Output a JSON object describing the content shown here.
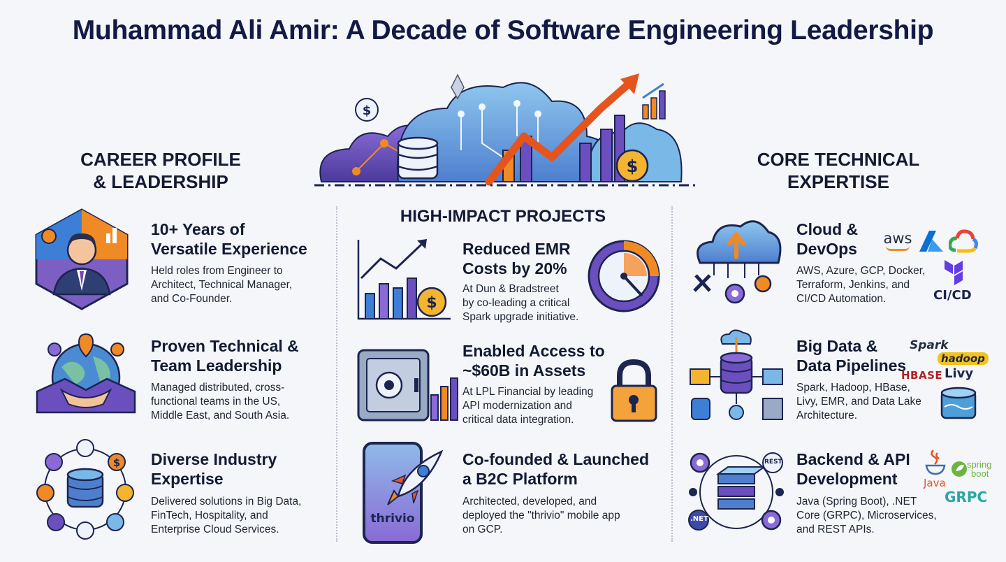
{
  "title": "Muhammad Ali Amir: A Decade of Software Engineering Leadership",
  "left": {
    "heading_line1": "CAREER PROFILE",
    "heading_line2": "& LEADERSHIP",
    "items": [
      {
        "title_line1": "10+ Years of",
        "title_line2": "Versatile Experience",
        "desc_line1": "Held roles from Engineer to",
        "desc_line2": "Architect, Technical Manager,",
        "desc_line3": "and Co-Founder."
      },
      {
        "title_line1": "Proven Technical &",
        "title_line2": "Team Leadership",
        "desc_line1": "Managed distributed, cross-",
        "desc_line2": "functional teams in the US,",
        "desc_line3": "Middle East, and South Asia."
      },
      {
        "title_line1": "Diverse Industry",
        "title_line2": "Expertise",
        "desc_line1": "Delivered solutions in Big Data,",
        "desc_line2": "FinTech, Hospitality, and",
        "desc_line3": "Enterprise Cloud Services."
      }
    ]
  },
  "middle": {
    "heading": "HIGH-IMPACT PROJECTS",
    "items": [
      {
        "title_line1": "Reduced EMR",
        "title_line2": "Costs by 20%",
        "desc_line1": "At Dun & Bradstreet",
        "desc_line2": "by co-leading a critical",
        "desc_line3": "Spark upgrade initiative."
      },
      {
        "title_line1": "Enabled Access to",
        "title_line2": "~$60B in Assets",
        "desc_line1": "At LPL Financial by leading",
        "desc_line2": "API modernization and",
        "desc_line3": "critical data integration."
      },
      {
        "title_line1": "Co-founded & Launched",
        "title_line2": "a B2C Platform",
        "desc_line1": "Architected, developed, and",
        "desc_line2": "deployed the \"thrivio\" mobile app",
        "desc_line3": "on GCP."
      }
    ],
    "phone_brand": "thrivio"
  },
  "right": {
    "heading_line1": "CORE TECHNICAL",
    "heading_line2": "EXPERTISE",
    "items": [
      {
        "title_line1": "Cloud &",
        "title_line2": "DevOps",
        "desc_line1": "AWS, Azure, GCP, Docker,",
        "desc_line2": "Terraform, Jenkins, and",
        "desc_line3": "CI/CD Automation."
      },
      {
        "title_line1": "Big Data &",
        "title_line2": "Data Pipelines",
        "desc_line1": "Spark, Hadoop, HBase,",
        "desc_line2": "Livy, EMR, and Data Lake",
        "desc_line3": "Architecture."
      },
      {
        "title_line1": "Backend & API",
        "title_line2": "Development",
        "desc_line1": "Java (Spring Boot), .NET",
        "desc_line2": "Core (GRPC), Microservices,",
        "desc_line3": "and REST APIs."
      }
    ],
    "logos": {
      "aws": "aws",
      "cicd": "CI/CD",
      "spark": "Spark",
      "hadoop": "hadoop",
      "hbase": "HBASE",
      "livy": "Livy",
      "java": "Java",
      "spring_line1": "spring",
      "spring_line2": "boot",
      "grpc": "GRPC",
      "rest": "REST",
      "net": ".NET"
    }
  },
  "colors": {
    "navy": "#121a44",
    "purple": "#6b4fbf",
    "orange": "#f08a24",
    "blue": "#3d7fd6",
    "teal": "#3bb3c7"
  }
}
